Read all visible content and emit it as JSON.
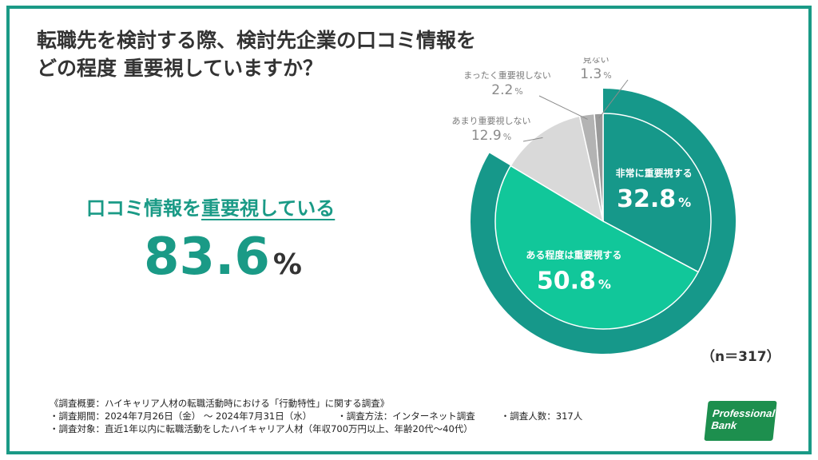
{
  "title": {
    "line1": "転職先を検討する際、検討先企業の口コミ情報を",
    "line2": "どの程度 重要視していますか？"
  },
  "headline": {
    "prefix": "口コミ情報を",
    "emphasis": "重要視している"
  },
  "big_stat": {
    "value": "83.6",
    "unit": "%"
  },
  "sample_size": "（n＝317）",
  "colors": {
    "frame": "#1a9a86",
    "very_important": "#16988a",
    "somewhat_important": "#11c79a",
    "not_very_important": "#d9d9d9",
    "not_at_all": "#b3b3b3",
    "not_seen": "#9a9a9a",
    "outer_ring": "#16988a"
  },
  "chart_data": {
    "type": "pie",
    "categories": [
      "非常に重要視する",
      "ある程度は重要視する",
      "あまり重要視しない",
      "まったく重要視しない",
      "見ない"
    ],
    "values": [
      32.8,
      50.8,
      12.9,
      2.2,
      1.3
    ],
    "unit": "%",
    "highlight_group": {
      "label": "重要視している",
      "members": [
        "非常に重要視する",
        "ある程度は重要視する"
      ],
      "total": 83.6
    },
    "legend": "none",
    "n": 317
  },
  "notes": {
    "line1": "《調査概要：ハイキャリア人材の転職活動時における「行動特性」に関する調査》",
    "line2a": "・調査期間：2024年7月26日（金） 〜 2024年7月31日（水）",
    "line2b": "・調査方法：インターネット調査",
    "line2c": "・調査人数：317人",
    "line3": "・調査対象：直近1年以内に転職活動をしたハイキャリア人材（年収700万円以上、年齢20代〜40代）"
  },
  "logo": {
    "line1": "Professional",
    "line2": "Bank"
  }
}
